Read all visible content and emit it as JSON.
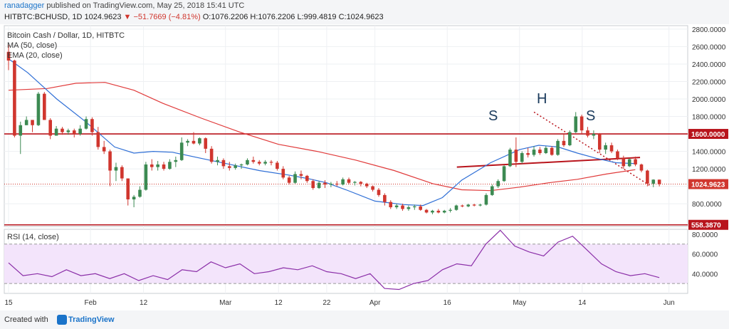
{
  "header": {
    "author": "ranadagger",
    "published": "published on TradingView.com, May 25, 2018 15:41 UTC",
    "symbol": "HITBTC:BCHUSD, 1D",
    "price": "1024.9623",
    "change": "▼ −51.7669 (−4.81%)",
    "ohlc": "O:1076.2206 H:1076.2206 L:999.4819 C:1024.9623"
  },
  "legend": {
    "title": "Bitcoin Cash / Dollar, 1D, HITBTC",
    "ma": "MA (50, close)",
    "ema": "EMA (20, close)",
    "rsi": "RSI (14, close)"
  },
  "patterns": {
    "left_shoulder": "S",
    "head": "H",
    "right_shoulder": "S"
  },
  "footer": {
    "created": "Created with",
    "brand": "TradingView"
  },
  "colors": {
    "bull": "#3c8a52",
    "bear": "#d0362e",
    "ma": "#e03a3a",
    "ema": "#2f6fd6",
    "rsi": "#8b2fa8",
    "rsi_band": "#f3e4fb",
    "line": "#b8141c"
  },
  "chart_data": [
    {
      "type": "candlestick",
      "title": "Bitcoin Cash / Dollar, 1D, HITBTC",
      "y_ticks": [
        800,
        1000,
        1200,
        1400,
        1600,
        1800,
        2000,
        2200,
        2400,
        2600,
        2800
      ],
      "y_tick_labels": [
        "800.0000",
        "1000.0000",
        "1200.0000",
        "1400.0000",
        "1600.0000",
        "1800.0000",
        "2000.0000",
        "2200.0000",
        "2400.0000",
        "2600.0000",
        "2800.0000"
      ],
      "ylim": [
        540,
        2840
      ],
      "x_tick_labels": [
        "15",
        "Feb",
        "12",
        "Mar",
        "12",
        "22",
        "Apr",
        "16",
        "May",
        "14",
        "Jun"
      ],
      "x_tick_days": [
        0,
        17,
        28,
        45,
        56,
        66,
        76,
        91,
        106,
        119,
        137
      ],
      "x_range_days": [
        0,
        140
      ],
      "price_labels": [
        {
          "value": 1600,
          "text": "1600.0000"
        },
        {
          "value": 1024.9623,
          "text": "1024.9623"
        },
        {
          "value": 558.387,
          "text": "558.3870"
        }
      ],
      "horizontal_lines": [
        1600,
        558.387
      ],
      "neckline": [
        [
          93,
          1220
        ],
        [
          131,
          1330
        ]
      ],
      "trendline": [
        [
          109,
          1850
        ],
        [
          133,
          1010
        ]
      ],
      "candles": [
        [
          2540,
          2620,
          2330,
          2440
        ],
        [
          2440,
          2450,
          1560,
          1580
        ],
        [
          1580,
          1740,
          1370,
          1700
        ],
        [
          1700,
          1800,
          1700,
          1760
        ],
        [
          1760,
          1760,
          1620,
          1700
        ],
        [
          1700,
          2080,
          1690,
          2060
        ],
        [
          2060,
          2080,
          1760,
          1760
        ],
        [
          1760,
          1780,
          1540,
          1580
        ],
        [
          1580,
          1690,
          1580,
          1660
        ],
        [
          1660,
          1680,
          1590,
          1620
        ],
        [
          1620,
          1660,
          1590,
          1640
        ],
        [
          1640,
          1660,
          1560,
          1600
        ],
        [
          1600,
          1700,
          1580,
          1660
        ],
        [
          1660,
          1800,
          1650,
          1770
        ],
        [
          1770,
          1790,
          1580,
          1620
        ],
        [
          1620,
          1680,
          1420,
          1450
        ],
        [
          1450,
          1520,
          1370,
          1400
        ],
        [
          1400,
          1420,
          1000,
          1180
        ],
        [
          1180,
          1270,
          1060,
          1220
        ],
        [
          1220,
          1240,
          1060,
          1090
        ],
        [
          1090,
          1090,
          780,
          850
        ],
        [
          850,
          900,
          760,
          880
        ],
        [
          880,
          1000,
          870,
          960
        ],
        [
          960,
          1280,
          950,
          1250
        ],
        [
          1250,
          1310,
          1180,
          1220
        ],
        [
          1220,
          1290,
          1180,
          1250
        ],
        [
          1250,
          1280,
          1180,
          1200
        ],
        [
          1200,
          1310,
          1190,
          1280
        ],
        [
          1280,
          1340,
          1220,
          1300
        ],
        [
          1300,
          1560,
          1290,
          1500
        ],
        [
          1500,
          1540,
          1460,
          1520
        ],
        [
          1520,
          1620,
          1480,
          1490
        ],
        [
          1490,
          1560,
          1470,
          1550
        ],
        [
          1550,
          1560,
          1380,
          1430
        ],
        [
          1430,
          1460,
          1260,
          1280
        ],
        [
          1280,
          1340,
          1240,
          1300
        ],
        [
          1300,
          1320,
          1200,
          1230
        ],
        [
          1230,
          1280,
          1180,
          1210
        ],
        [
          1210,
          1260,
          1190,
          1240
        ],
        [
          1240,
          1260,
          1200,
          1250
        ],
        [
          1250,
          1320,
          1240,
          1300
        ],
        [
          1300,
          1340,
          1260,
          1280
        ],
        [
          1280,
          1300,
          1240,
          1260
        ],
        [
          1260,
          1300,
          1240,
          1280
        ],
        [
          1280,
          1300,
          1240,
          1270
        ],
        [
          1270,
          1290,
          1180,
          1200
        ],
        [
          1200,
          1230,
          1080,
          1100
        ],
        [
          1100,
          1120,
          1020,
          1040
        ],
        [
          1040,
          1170,
          1030,
          1140
        ],
        [
          1140,
          1180,
          1080,
          1120
        ],
        [
          1120,
          1130,
          1040,
          1060
        ],
        [
          1060,
          1080,
          960,
          980
        ],
        [
          980,
          1060,
          970,
          1040
        ],
        [
          1040,
          1070,
          980,
          1020
        ],
        [
          1020,
          1050,
          990,
          1030
        ],
        [
          1030,
          1060,
          1000,
          1020
        ],
        [
          1020,
          1100,
          1010,
          1080
        ],
        [
          1080,
          1100,
          1020,
          1040
        ],
        [
          1040,
          1060,
          1010,
          1050
        ],
        [
          1050,
          1060,
          1000,
          1030
        ],
        [
          1030,
          1040,
          980,
          1000
        ],
        [
          1000,
          1010,
          940,
          960
        ],
        [
          960,
          980,
          880,
          900
        ],
        [
          900,
          920,
          780,
          820
        ],
        [
          820,
          840,
          740,
          760
        ],
        [
          760,
          800,
          740,
          780
        ],
        [
          780,
          800,
          720,
          740
        ],
        [
          740,
          780,
          720,
          760
        ],
        [
          760,
          790,
          730,
          770
        ],
        [
          770,
          790,
          720,
          730
        ],
        [
          730,
          740,
          690,
          700
        ],
        [
          700,
          730,
          680,
          720
        ],
        [
          720,
          740,
          690,
          700
        ],
        [
          700,
          730,
          690,
          720
        ],
        [
          720,
          750,
          700,
          730
        ],
        [
          730,
          790,
          720,
          780
        ],
        [
          780,
          790,
          760,
          770
        ],
        [
          770,
          800,
          760,
          790
        ],
        [
          790,
          800,
          770,
          780
        ],
        [
          780,
          800,
          770,
          790
        ],
        [
          790,
          920,
          780,
          900
        ],
        [
          900,
          1020,
          890,
          1000
        ],
        [
          1000,
          1080,
          980,
          1060
        ],
        [
          1060,
          1240,
          1050,
          1230
        ],
        [
          1230,
          1440,
          1220,
          1420
        ],
        [
          1420,
          1560,
          1220,
          1280
        ],
        [
          1280,
          1400,
          1260,
          1380
        ],
        [
          1380,
          1440,
          1330,
          1360
        ],
        [
          1360,
          1460,
          1340,
          1420
        ],
        [
          1420,
          1450,
          1360,
          1380
        ],
        [
          1380,
          1460,
          1370,
          1440
        ],
        [
          1440,
          1460,
          1350,
          1360
        ],
        [
          1360,
          1540,
          1350,
          1520
        ],
        [
          1520,
          1600,
          1450,
          1470
        ],
        [
          1470,
          1640,
          1460,
          1620
        ],
        [
          1620,
          1850,
          1610,
          1800
        ],
        [
          1800,
          1820,
          1600,
          1640
        ],
        [
          1640,
          1680,
          1560,
          1580
        ],
        [
          1580,
          1640,
          1540,
          1600
        ],
        [
          1600,
          1610,
          1380,
          1420
        ],
        [
          1420,
          1500,
          1370,
          1470
        ],
        [
          1470,
          1500,
          1380,
          1400
        ],
        [
          1400,
          1420,
          1300,
          1320
        ],
        [
          1320,
          1350,
          1200,
          1230
        ],
        [
          1230,
          1320,
          1220,
          1310
        ],
        [
          1310,
          1340,
          1230,
          1250
        ],
        [
          1250,
          1260,
          1160,
          1180
        ],
        [
          1180,
          1190,
          1000,
          1030
        ],
        [
          1030,
          1080,
          990,
          1076
        ],
        [
          1076,
          1076,
          999,
          1025
        ]
      ],
      "ma50": [
        [
          0,
          2100
        ],
        [
          8,
          2120
        ],
        [
          14,
          2180
        ],
        [
          20,
          2190
        ],
        [
          26,
          2100
        ],
        [
          32,
          1950
        ],
        [
          40,
          1780
        ],
        [
          48,
          1620
        ],
        [
          56,
          1480
        ],
        [
          64,
          1400
        ],
        [
          72,
          1300
        ],
        [
          80,
          1180
        ],
        [
          88,
          1030
        ],
        [
          94,
          960
        ],
        [
          100,
          950
        ],
        [
          106,
          990
        ],
        [
          112,
          1040
        ],
        [
          118,
          1080
        ],
        [
          124,
          1140
        ],
        [
          130,
          1190
        ]
      ],
      "ema20": [
        [
          0,
          2460
        ],
        [
          4,
          2300
        ],
        [
          10,
          2000
        ],
        [
          16,
          1740
        ],
        [
          22,
          1450
        ],
        [
          26,
          1380
        ],
        [
          30,
          1400
        ],
        [
          34,
          1390
        ],
        [
          40,
          1320
        ],
        [
          46,
          1250
        ],
        [
          52,
          1180
        ],
        [
          58,
          1130
        ],
        [
          62,
          1090
        ],
        [
          66,
          1040
        ],
        [
          70,
          960
        ],
        [
          76,
          830
        ],
        [
          82,
          790
        ],
        [
          86,
          780
        ],
        [
          90,
          870
        ],
        [
          94,
          1070
        ],
        [
          100,
          1270
        ],
        [
          106,
          1420
        ],
        [
          110,
          1470
        ],
        [
          114,
          1450
        ],
        [
          118,
          1380
        ],
        [
          122,
          1320
        ],
        [
          126,
          1270
        ],
        [
          130,
          1260
        ]
      ]
    },
    {
      "type": "line",
      "title": "RSI (14, close)",
      "y_ticks": [
        40,
        60,
        80
      ],
      "y_tick_labels": [
        "40.0000",
        "60.0000",
        "80.0000"
      ],
      "ylim": [
        20,
        85
      ],
      "band": [
        30,
        70
      ],
      "values": [
        [
          0,
          51
        ],
        [
          3,
          38
        ],
        [
          6,
          40
        ],
        [
          9,
          37
        ],
        [
          12,
          44
        ],
        [
          15,
          38
        ],
        [
          18,
          40
        ],
        [
          21,
          35
        ],
        [
          24,
          40
        ],
        [
          27,
          33
        ],
        [
          30,
          38
        ],
        [
          33,
          34
        ],
        [
          36,
          44
        ],
        [
          39,
          42
        ],
        [
          42,
          52
        ],
        [
          45,
          46
        ],
        [
          48,
          50
        ],
        [
          51,
          40
        ],
        [
          54,
          42
        ],
        [
          57,
          46
        ],
        [
          60,
          44
        ],
        [
          63,
          48
        ],
        [
          66,
          42
        ],
        [
          69,
          40
        ],
        [
          72,
          35
        ],
        [
          75,
          40
        ],
        [
          78,
          25
        ],
        [
          81,
          24
        ],
        [
          84,
          30
        ],
        [
          87,
          33
        ],
        [
          90,
          44
        ],
        [
          93,
          50
        ],
        [
          96,
          48
        ],
        [
          99,
          70
        ],
        [
          102,
          84
        ],
        [
          105,
          68
        ],
        [
          108,
          62
        ],
        [
          111,
          58
        ],
        [
          114,
          72
        ],
        [
          117,
          78
        ],
        [
          120,
          64
        ],
        [
          123,
          50
        ],
        [
          126,
          42
        ],
        [
          129,
          38
        ],
        [
          132,
          40
        ],
        [
          135,
          36
        ]
      ]
    }
  ]
}
